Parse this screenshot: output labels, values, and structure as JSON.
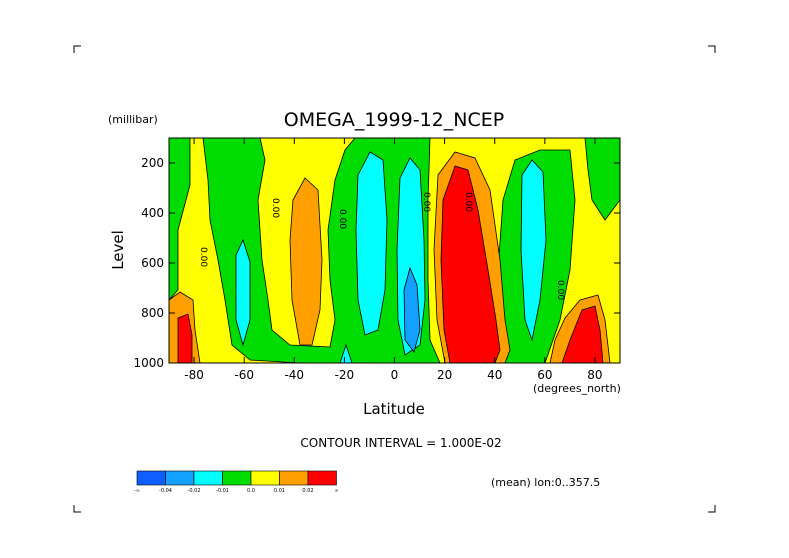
{
  "chart_data": {
    "type": "contour",
    "title": "OMEGA_1999-12_NCEP",
    "xlabel": "Latitude",
    "x_units": "(degrees_north)",
    "ylabel": "Level",
    "y_units": "(millibar)",
    "xlim": [
      -90,
      90
    ],
    "ylim": [
      1000,
      100
    ],
    "x_ticks": [
      "-80",
      "-60",
      "-40",
      "-20",
      "0",
      "20",
      "40",
      "60",
      "80"
    ],
    "x_tick_values": [
      -80,
      -60,
      -40,
      -20,
      0,
      20,
      40,
      60,
      80
    ],
    "y_ticks": [
      "200",
      "400",
      "600",
      "800",
      "1000"
    ],
    "y_tick_values": [
      200,
      400,
      600,
      800,
      1000
    ],
    "contour_interval_text": "CONTOUR INTERVAL = 1.000E-02",
    "mean_text": "(mean) lon:0..357.5",
    "contour_labels": [
      "0.00",
      "0.00",
      "0.00",
      "0.00",
      "0.00",
      "0.00"
    ],
    "colorbar": {
      "colors": [
        "#0f5fff",
        "#14a0ff",
        "#00ffff",
        "#00dc00",
        "#ffff00",
        "#ffa000",
        "#ff0000"
      ],
      "labels": [
        "-∞",
        "-0.04",
        "-0.02",
        "-0.01",
        "0.0",
        "0.01",
        "0.02",
        "∞"
      ]
    }
  }
}
